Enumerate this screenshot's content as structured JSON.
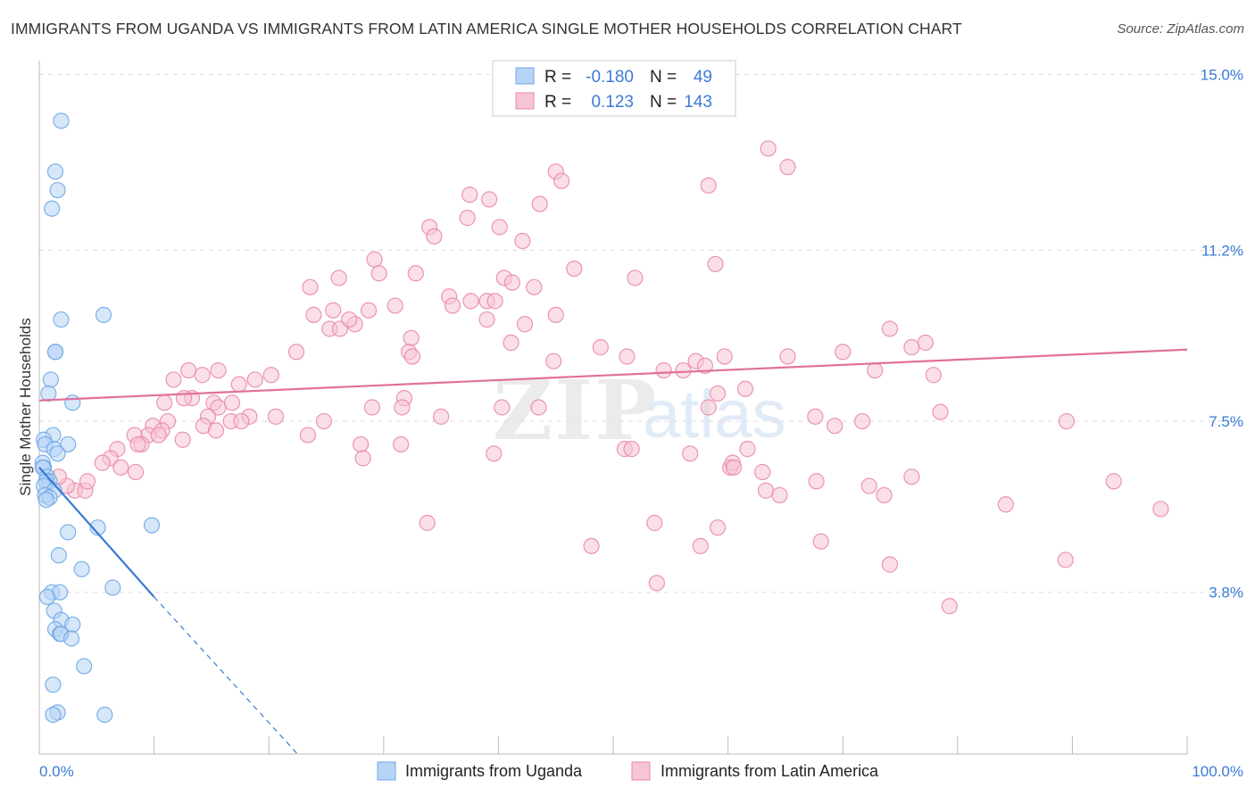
{
  "header": {
    "title": "IMMIGRANTS FROM UGANDA VS IMMIGRANTS FROM LATIN AMERICA SINGLE MOTHER HOUSEHOLDS CORRELATION CHART",
    "source": "Source: ZipAtlas.com"
  },
  "watermark": {
    "zip": "ZIP",
    "atlas": "atlas"
  },
  "colors": {
    "blue": "#6fa8e6",
    "blue_fill": "#b6d4f5",
    "blue_line": "#3a7bd5",
    "pink": "#e889a8",
    "pink_fill": "#f7c4d4",
    "pink_line": "#e0709a",
    "axis_text": "#3a7bd5",
    "grid": "#dddddd"
  },
  "legend_stats": [
    {
      "r_label": "R =",
      "r_value": "-0.180",
      "n_label": "N =",
      "n_value": "49"
    },
    {
      "r_label": "R =",
      "r_value": "0.123",
      "n_label": "N =",
      "n_value": "143"
    }
  ],
  "chart_data": {
    "type": "scatter",
    "title": "IMMIGRANTS FROM UGANDA VS IMMIGRANTS FROM LATIN AMERICA SINGLE MOTHER HOUSEHOLDS CORRELATION CHART",
    "xlabel": "",
    "ylabel": "Single Mother Households",
    "xlim": [
      0,
      100
    ],
    "ylim": [
      0.3,
      15.3
    ],
    "x_tick_labels": [
      "0.0%",
      "100.0%"
    ],
    "y_ticks": [
      3.8,
      7.5,
      11.2,
      15.0
    ],
    "y_tick_labels": [
      "3.8%",
      "7.5%",
      "11.2%",
      "15.0%"
    ],
    "legend_position": "bottom-center",
    "series": [
      {
        "name": "Immigrants from Uganda",
        "color": "blue",
        "r": -0.18,
        "n": 49,
        "trend": {
          "solid": [
            [
              0,
              6.5
            ],
            [
              10,
              3.7
            ]
          ],
          "dashed": [
            [
              10,
              3.7
            ],
            [
              22.5,
              0.3
            ]
          ]
        },
        "points": [
          [
            1.9,
            14.0
          ],
          [
            1.4,
            12.9
          ],
          [
            1.6,
            12.5
          ],
          [
            1.1,
            12.1
          ],
          [
            5.6,
            9.8
          ],
          [
            1.9,
            9.7
          ],
          [
            1.4,
            9.0
          ],
          [
            1.4,
            9.0
          ],
          [
            1.0,
            8.4
          ],
          [
            0.8,
            8.1
          ],
          [
            2.9,
            7.9
          ],
          [
            1.2,
            7.2
          ],
          [
            0.4,
            7.1
          ],
          [
            0.5,
            7.0
          ],
          [
            2.5,
            7.0
          ],
          [
            1.3,
            6.9
          ],
          [
            1.6,
            6.8
          ],
          [
            0.3,
            6.6
          ],
          [
            0.4,
            6.5
          ],
          [
            0.3,
            6.5
          ],
          [
            0.7,
            6.3
          ],
          [
            0.9,
            6.2
          ],
          [
            0.6,
            6.2
          ],
          [
            0.4,
            6.1
          ],
          [
            1.3,
            6.0
          ],
          [
            0.5,
            5.9
          ],
          [
            0.9,
            5.85
          ],
          [
            0.6,
            5.8
          ],
          [
            5.1,
            5.2
          ],
          [
            9.8,
            5.25
          ],
          [
            2.5,
            5.1
          ],
          [
            1.7,
            4.6
          ],
          [
            3.7,
            4.3
          ],
          [
            6.4,
            3.9
          ],
          [
            1.1,
            3.8
          ],
          [
            1.8,
            3.8
          ],
          [
            0.7,
            3.7
          ],
          [
            1.3,
            3.4
          ],
          [
            1.9,
            3.2
          ],
          [
            2.9,
            3.1
          ],
          [
            1.4,
            3.0
          ],
          [
            1.8,
            2.9
          ],
          [
            1.9,
            2.9
          ],
          [
            2.8,
            2.8
          ],
          [
            3.9,
            2.2
          ],
          [
            1.2,
            1.8
          ],
          [
            1.6,
            1.2
          ],
          [
            1.2,
            1.15
          ],
          [
            5.7,
            1.15
          ]
        ]
      },
      {
        "name": "Immigrants from Latin America",
        "color": "pink",
        "r": 0.123,
        "n": 143,
        "trend": {
          "solid": [
            [
              0,
              7.95
            ],
            [
              100,
              9.05
            ]
          ]
        },
        "points": [
          [
            63.5,
            13.4
          ],
          [
            65.2,
            13.0
          ],
          [
            45.0,
            12.9
          ],
          [
            45.5,
            12.7
          ],
          [
            58.3,
            12.6
          ],
          [
            37.5,
            12.4
          ],
          [
            39.2,
            12.3
          ],
          [
            43.6,
            12.2
          ],
          [
            37.3,
            11.9
          ],
          [
            34.0,
            11.7
          ],
          [
            40.1,
            11.7
          ],
          [
            34.4,
            11.5
          ],
          [
            42.1,
            11.4
          ],
          [
            29.2,
            11.0
          ],
          [
            58.9,
            10.9
          ],
          [
            46.6,
            10.8
          ],
          [
            29.6,
            10.7
          ],
          [
            32.8,
            10.7
          ],
          [
            26.1,
            10.6
          ],
          [
            40.5,
            10.6
          ],
          [
            51.9,
            10.6
          ],
          [
            41.2,
            10.5
          ],
          [
            43.1,
            10.4
          ],
          [
            23.6,
            10.4
          ],
          [
            35.7,
            10.2
          ],
          [
            36.0,
            10.0
          ],
          [
            39.0,
            10.1
          ],
          [
            37.6,
            10.1
          ],
          [
            39.7,
            10.1
          ],
          [
            31.0,
            10.0
          ],
          [
            25.6,
            9.9
          ],
          [
            28.7,
            9.9
          ],
          [
            23.9,
            9.8
          ],
          [
            39.0,
            9.7
          ],
          [
            42.3,
            9.6
          ],
          [
            27.5,
            9.6
          ],
          [
            25.3,
            9.5
          ],
          [
            26.2,
            9.5
          ],
          [
            27.0,
            9.7
          ],
          [
            45.0,
            9.8
          ],
          [
            32.4,
            9.3
          ],
          [
            22.4,
            9.0
          ],
          [
            41.1,
            9.2
          ],
          [
            48.9,
            9.1
          ],
          [
            70.0,
            9.0
          ],
          [
            59.7,
            8.9
          ],
          [
            65.2,
            8.9
          ],
          [
            74.1,
            9.5
          ],
          [
            77.2,
            9.2
          ],
          [
            76.0,
            9.1
          ],
          [
            32.2,
            9.0
          ],
          [
            32.5,
            8.9
          ],
          [
            51.2,
            8.9
          ],
          [
            44.8,
            8.8
          ],
          [
            57.2,
            8.8
          ],
          [
            58.0,
            8.7
          ],
          [
            54.4,
            8.6
          ],
          [
            56.1,
            8.6
          ],
          [
            72.8,
            8.6
          ],
          [
            77.9,
            8.5
          ],
          [
            20.2,
            8.5
          ],
          [
            17.4,
            8.3
          ],
          [
            14.2,
            8.5
          ],
          [
            15.6,
            8.6
          ],
          [
            11.7,
            8.4
          ],
          [
            13.0,
            8.6
          ],
          [
            18.8,
            8.4
          ],
          [
            61.5,
            8.2
          ],
          [
            59.1,
            8.1
          ],
          [
            13.3,
            8.0
          ],
          [
            12.6,
            8.0
          ],
          [
            10.9,
            7.9
          ],
          [
            31.8,
            8.0
          ],
          [
            15.2,
            7.9
          ],
          [
            31.6,
            7.8
          ],
          [
            15.6,
            7.8
          ],
          [
            16.8,
            7.9
          ],
          [
            14.7,
            7.6
          ],
          [
            18.3,
            7.6
          ],
          [
            20.6,
            7.6
          ],
          [
            24.8,
            7.5
          ],
          [
            35.0,
            7.6
          ],
          [
            14.3,
            7.4
          ],
          [
            16.7,
            7.5
          ],
          [
            17.6,
            7.5
          ],
          [
            9.9,
            7.4
          ],
          [
            11.2,
            7.5
          ],
          [
            10.7,
            7.3
          ],
          [
            15.4,
            7.3
          ],
          [
            9.5,
            7.2
          ],
          [
            10.4,
            7.2
          ],
          [
            12.5,
            7.1
          ],
          [
            8.3,
            7.2
          ],
          [
            8.9,
            7.0
          ],
          [
            29.0,
            7.8
          ],
          [
            40.3,
            7.8
          ],
          [
            43.5,
            7.8
          ],
          [
            58.3,
            7.8
          ],
          [
            78.5,
            7.7
          ],
          [
            71.7,
            7.5
          ],
          [
            67.6,
            7.6
          ],
          [
            69.3,
            7.4
          ],
          [
            89.5,
            7.5
          ],
          [
            23.4,
            7.2
          ],
          [
            28.0,
            7.0
          ],
          [
            28.2,
            6.7
          ],
          [
            31.5,
            7.0
          ],
          [
            6.8,
            6.9
          ],
          [
            8.6,
            7.0
          ],
          [
            6.2,
            6.7
          ],
          [
            5.5,
            6.6
          ],
          [
            7.1,
            6.5
          ],
          [
            8.4,
            6.4
          ],
          [
            39.6,
            6.8
          ],
          [
            51.0,
            6.9
          ],
          [
            51.6,
            6.9
          ],
          [
            56.7,
            6.8
          ],
          [
            60.2,
            6.5
          ],
          [
            60.4,
            6.6
          ],
          [
            61.7,
            6.9
          ],
          [
            60.5,
            6.5
          ],
          [
            63.0,
            6.4
          ],
          [
            67.7,
            6.2
          ],
          [
            76.0,
            6.3
          ],
          [
            93.6,
            6.2
          ],
          [
            63.3,
            6.0
          ],
          [
            64.5,
            5.9
          ],
          [
            72.3,
            6.1
          ],
          [
            73.6,
            5.9
          ],
          [
            84.2,
            5.7
          ],
          [
            97.7,
            5.6
          ],
          [
            57.6,
            4.8
          ],
          [
            89.4,
            4.5
          ],
          [
            33.8,
            5.3
          ],
          [
            59.1,
            5.2
          ],
          [
            48.1,
            4.8
          ],
          [
            68.1,
            4.9
          ],
          [
            53.8,
            4.0
          ],
          [
            74.1,
            4.4
          ],
          [
            79.3,
            3.5
          ],
          [
            53.6,
            5.3
          ],
          [
            3.1,
            6.0
          ],
          [
            2.4,
            6.1
          ],
          [
            1.7,
            6.3
          ],
          [
            4.0,
            6.0
          ],
          [
            4.2,
            6.2
          ]
        ]
      }
    ]
  }
}
